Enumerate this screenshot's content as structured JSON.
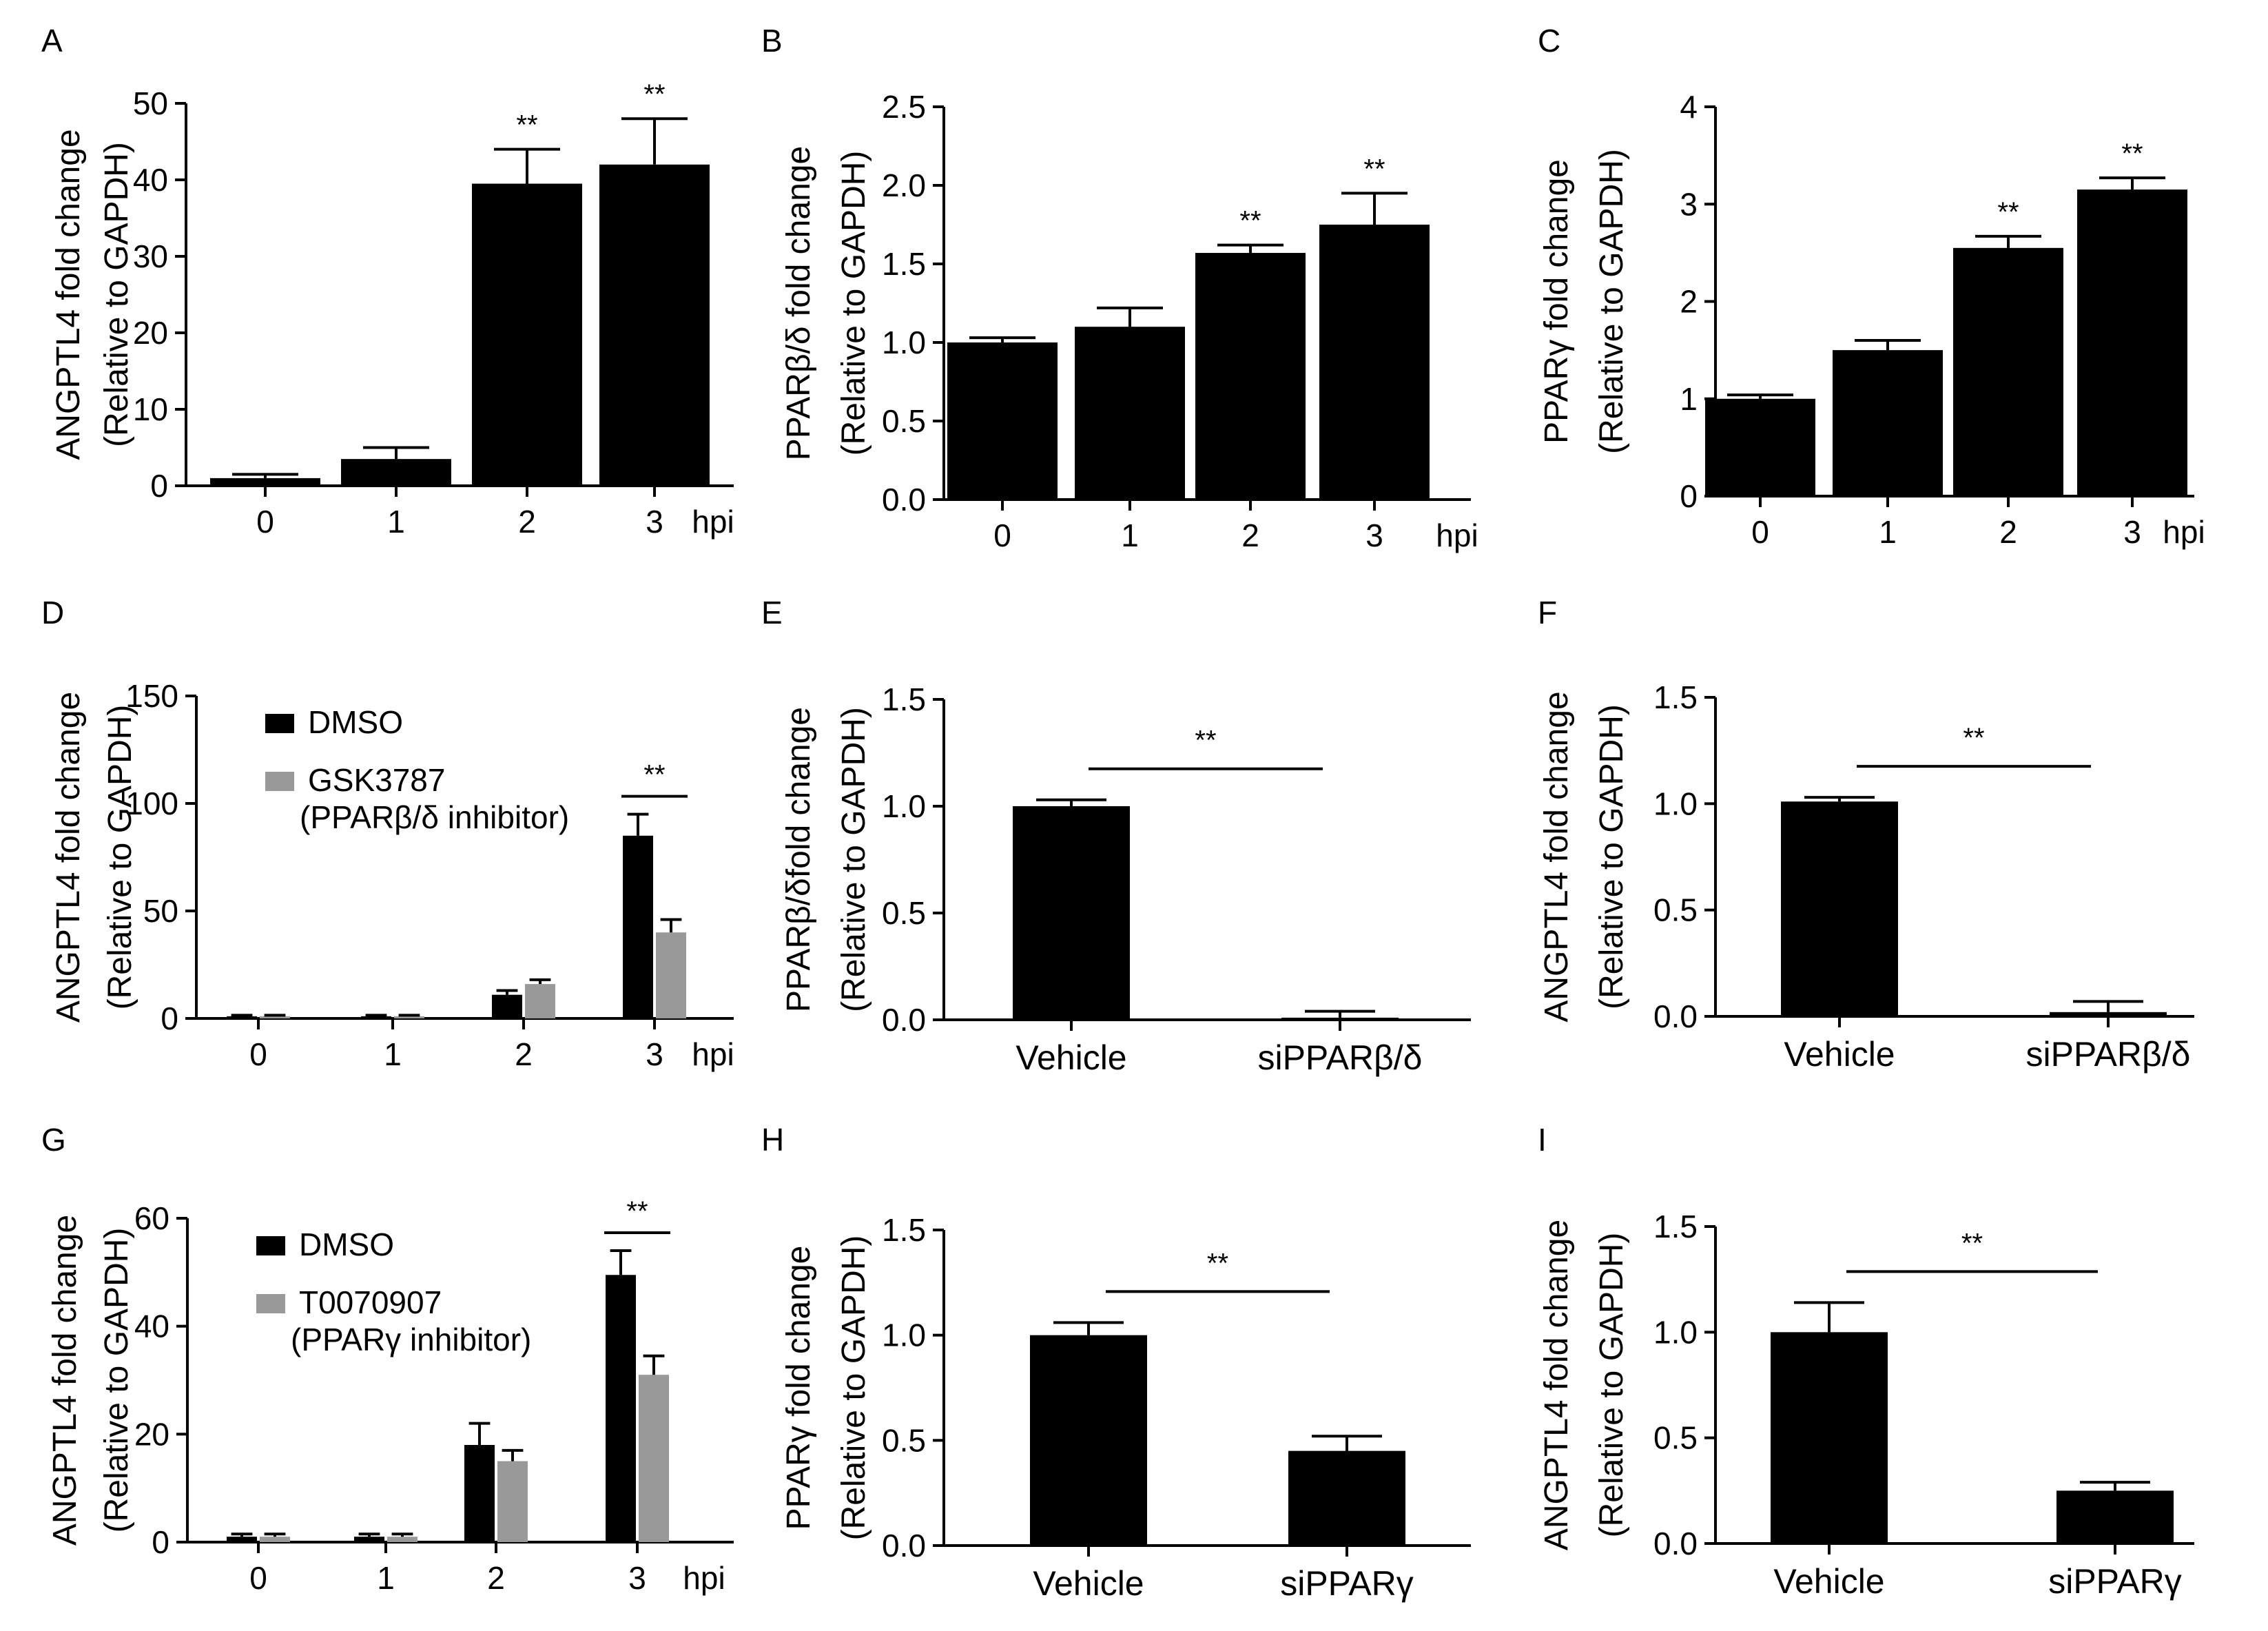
{
  "figure": {
    "panel_labels": [
      "A",
      "B",
      "C",
      "D",
      "E",
      "F",
      "G",
      "H",
      "I"
    ]
  },
  "colors": {
    "dmso": "#000000",
    "inhibitor": "#999999",
    "axis": "#000000"
  },
  "chart_data": [
    {
      "panel": "A",
      "type": "bar",
      "ylabel": [
        "ANGPTL4 fold change",
        "(Relative to GAPDH)"
      ],
      "xlabel": "hpi",
      "categories": [
        "0",
        "1",
        "2",
        "3"
      ],
      "ylim": [
        0,
        50
      ],
      "yticks": [
        "0",
        "10",
        "20",
        "30",
        "40",
        "50"
      ],
      "series": [
        {
          "name": "",
          "values": [
            1,
            3.5,
            39.5,
            42
          ],
          "errors": [
            0.5,
            1.5,
            4.5,
            6
          ],
          "color": "black"
        }
      ],
      "sig": [
        {
          "index": 2,
          "label": "**"
        },
        {
          "index": 3,
          "label": "**"
        }
      ]
    },
    {
      "panel": "B",
      "type": "bar",
      "ylabel": [
        "PPARβ/δ fold change",
        "(Relative to GAPDH)"
      ],
      "xlabel": "hpi",
      "categories": [
        "0",
        "1",
        "2",
        "3"
      ],
      "ylim": [
        0,
        2.5
      ],
      "yticks": [
        "0.0",
        "0.5",
        "1.0",
        "1.5",
        "2.0",
        "2.5"
      ],
      "series": [
        {
          "name": "",
          "values": [
            1.0,
            1.1,
            1.57,
            1.75
          ],
          "errors": [
            0.03,
            0.12,
            0.05,
            0.2
          ],
          "color": "black"
        }
      ],
      "sig": [
        {
          "index": 2,
          "label": "**"
        },
        {
          "index": 3,
          "label": "**"
        }
      ]
    },
    {
      "panel": "C",
      "type": "bar",
      "ylabel": [
        "PPARγ fold change",
        "(Relative to GAPDH)"
      ],
      "xlabel": "hpi",
      "categories": [
        "0",
        "1",
        "2",
        "3"
      ],
      "ylim": [
        0,
        4
      ],
      "yticks": [
        "0",
        "1",
        "2",
        "3",
        "4"
      ],
      "series": [
        {
          "name": "",
          "values": [
            1.0,
            1.5,
            2.55,
            3.15
          ],
          "errors": [
            0.04,
            0.1,
            0.12,
            0.12
          ],
          "color": "black"
        }
      ],
      "sig": [
        {
          "index": 2,
          "label": "**"
        },
        {
          "index": 3,
          "label": "**"
        }
      ]
    },
    {
      "panel": "D",
      "type": "bar",
      "ylabel": [
        "ANGPTL4 fold change",
        "(Relative to GAPDH)"
      ],
      "xlabel": "hpi",
      "categories": [
        "0",
        "1",
        "2",
        "3"
      ],
      "ylim": [
        0,
        150
      ],
      "yticks": [
        "0",
        "50",
        "100",
        "150"
      ],
      "series": [
        {
          "name": "DMSO",
          "values": [
            1,
            1,
            11,
            85
          ],
          "errors": [
            0.5,
            0.5,
            2,
            10
          ],
          "color": "black"
        },
        {
          "name": "GSK3787",
          "values": [
            1,
            1,
            16,
            40
          ],
          "errors": [
            0.5,
            0.5,
            2,
            6
          ],
          "color": "gray"
        }
      ],
      "legend": [
        {
          "lines": [
            "DMSO"
          ]
        },
        {
          "lines": [
            "GSK3787",
            "(PPARβ/δ inhibitor)"
          ]
        }
      ],
      "pair_sig": [
        {
          "index": 3,
          "label": "**"
        }
      ]
    },
    {
      "panel": "E",
      "type": "bar",
      "ylabel": [
        "PPARβ/δfold change",
        "(Relative to GAPDH)"
      ],
      "xlabel": "",
      "categories": [
        "Vehicle",
        "siPPARβ/δ"
      ],
      "ylim": [
        0,
        1.5
      ],
      "yticks": [
        "0.0",
        "0.5",
        "1.0",
        "1.5"
      ],
      "series": [
        {
          "name": "",
          "values": [
            1.0,
            0.01
          ],
          "errors": [
            0.03,
            0.03
          ],
          "color": "black"
        }
      ],
      "bracket": {
        "label": "**"
      }
    },
    {
      "panel": "F",
      "type": "bar",
      "ylabel": [
        "ANGPTL4 fold change",
        "(Relative to GAPDH)"
      ],
      "xlabel": "",
      "categories": [
        "Vehicle",
        "siPPARβ/δ"
      ],
      "ylim": [
        0,
        1.5
      ],
      "yticks": [
        "0.0",
        "0.5",
        "1.0",
        "1.5"
      ],
      "series": [
        {
          "name": "",
          "values": [
            1.01,
            0.02
          ],
          "errors": [
            0.02,
            0.05
          ],
          "color": "black"
        }
      ],
      "bracket": {
        "label": "**"
      }
    },
    {
      "panel": "G",
      "type": "bar",
      "ylabel": [
        "ANGPTL4 fold change",
        "(Relative to GAPDH)"
      ],
      "xlabel": "hpi",
      "categories": [
        "0",
        "1",
        "2",
        "3"
      ],
      "ylim": [
        0,
        60
      ],
      "yticks": [
        "0",
        "20",
        "40",
        "60"
      ],
      "series": [
        {
          "name": "DMSO",
          "values": [
            1,
            1,
            18,
            49.5
          ],
          "errors": [
            0.5,
            0.5,
            4,
            4.5
          ],
          "color": "black"
        },
        {
          "name": "T0070907",
          "values": [
            1,
            1,
            15,
            31
          ],
          "errors": [
            0.5,
            0.5,
            2,
            3.5
          ],
          "color": "gray"
        }
      ],
      "legend": [
        {
          "lines": [
            "DMSO"
          ]
        },
        {
          "lines": [
            "T0070907",
            "(PPARγ inhibitor)"
          ]
        }
      ],
      "pair_sig": [
        {
          "index": 3,
          "label": "**"
        }
      ]
    },
    {
      "panel": "H",
      "type": "bar",
      "ylabel": [
        "PPARγ fold change",
        "(Relative to GAPDH)"
      ],
      "xlabel": "",
      "categories": [
        "Vehicle",
        "siPPARγ"
      ],
      "ylim": [
        0,
        1.5
      ],
      "yticks": [
        "0.0",
        "0.5",
        "1.0",
        "1.5"
      ],
      "series": [
        {
          "name": "",
          "values": [
            1.0,
            0.45
          ],
          "errors": [
            0.06,
            0.07
          ],
          "color": "black"
        }
      ],
      "bracket": {
        "label": "**"
      }
    },
    {
      "panel": "I",
      "type": "bar",
      "ylabel": [
        "ANGPTL4 fold change",
        "(Relative to GAPDH)"
      ],
      "xlabel": "",
      "categories": [
        "Vehicle",
        "siPPARγ"
      ],
      "ylim": [
        0,
        1.5
      ],
      "yticks": [
        "0.0",
        "0.5",
        "1.0",
        "1.5"
      ],
      "series": [
        {
          "name": "",
          "values": [
            1.0,
            0.25
          ],
          "errors": [
            0.14,
            0.04
          ],
          "color": "black"
        }
      ],
      "bracket": {
        "label": "**"
      }
    }
  ]
}
